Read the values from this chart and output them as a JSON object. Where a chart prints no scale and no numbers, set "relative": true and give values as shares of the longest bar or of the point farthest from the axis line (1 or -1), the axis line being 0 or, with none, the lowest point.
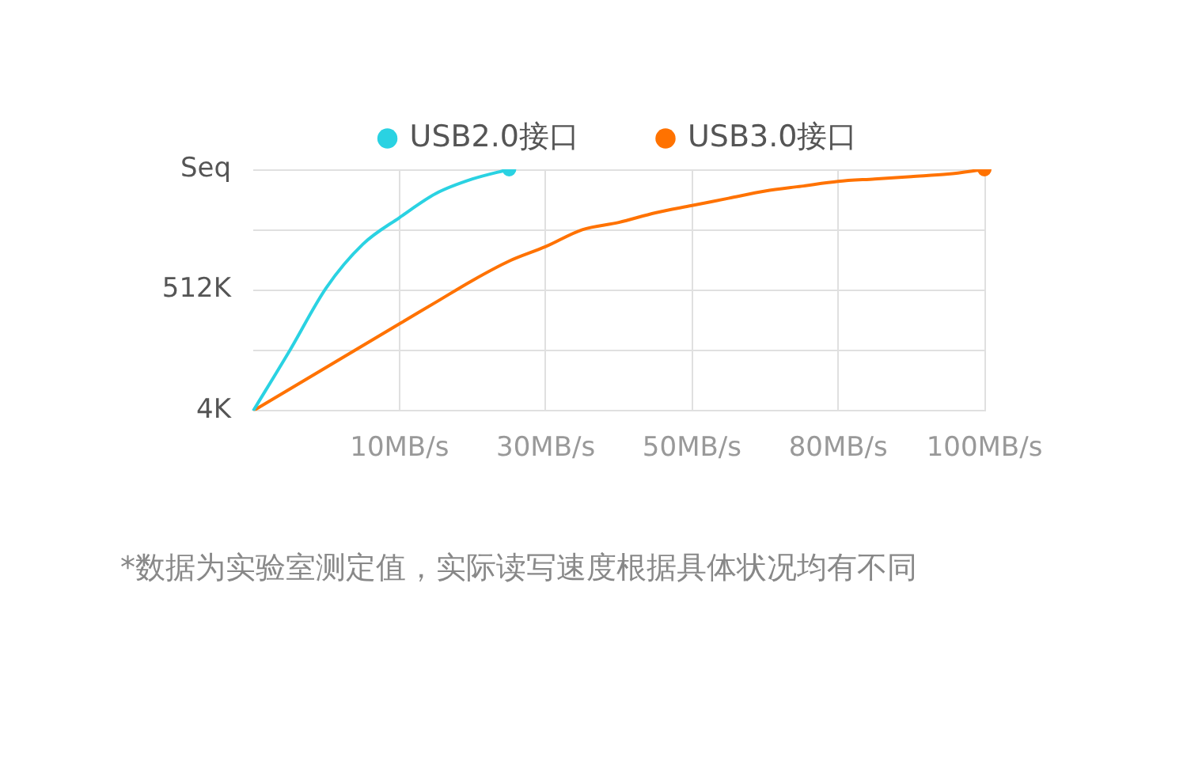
{
  "chart_data": {
    "type": "line",
    "relative": true,
    "categories": [
      null,
      null,
      null,
      null,
      "10MB/s",
      null,
      null,
      null,
      "30MB/s",
      null,
      null,
      null,
      "50MB/s",
      null,
      null,
      null,
      "80MB/s",
      null,
      null,
      null,
      "100MB/s"
    ],
    "grid": true,
    "legend": "top",
    "line_style": "solid",
    "series": [
      {
        "name": "USB2.0接口",
        "color": "#2ad2e2",
        "values": [
          0,
          0.25,
          0.51,
          0.69,
          0.8,
          0.9,
          0.96,
          1,
          null,
          null,
          null,
          null,
          null,
          null,
          null,
          null,
          null,
          null,
          null,
          null,
          null
        ]
      },
      {
        "name": "USB3.0接口",
        "color": "#ff7200",
        "values": [
          0,
          0.09,
          0.18,
          0.27,
          0.36,
          0.45,
          0.54,
          0.62,
          0.68,
          0.75,
          0.78,
          0.82,
          0.85,
          0.88,
          0.91,
          0.93,
          0.95,
          0.96,
          0.97,
          0.98,
          1
        ]
      }
    ],
    "annotations": [
      "4K",
      "512K",
      "Seq",
      "*数据为实验室测定值，实际读写速度根据具体状况均有不同"
    ]
  }
}
